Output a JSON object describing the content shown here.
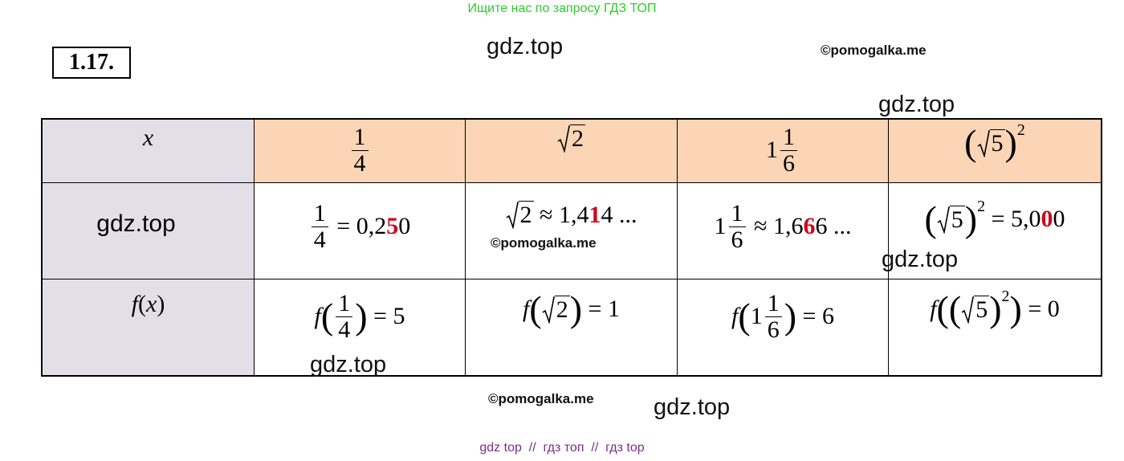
{
  "header": {
    "banner": "Ищите нас по запросу ГДЗ ТОП",
    "problem": "1.17."
  },
  "watermarks": [
    "gdz.top",
    "©pomogalka.me",
    "gdz.top",
    "©pomogalka.me",
    "gdz.top",
    "gdz.top",
    "©pomogalka.me",
    "gdz.top"
  ],
  "table": {
    "rows": [
      [
        [
          {
            "i": "x"
          }
        ],
        [
          {
            "frac": [
              "1",
              "4"
            ]
          }
        ],
        [
          {
            "sqrt": "2"
          }
        ],
        [
          "1",
          {
            "frac": [
              "1",
              "6"
            ]
          }
        ],
        [
          {
            "big": "("
          },
          {
            "sqrt": "5"
          },
          {
            "big": ")"
          },
          {
            "sup": "2"
          }
        ]
      ],
      [
        [
          "gdz.top"
        ],
        [
          {
            "frac": [
              "1",
              "4"
            ]
          },
          " = 0,2",
          {
            "red": "5"
          },
          "0"
        ],
        [
          {
            "sqrt": "2"
          },
          " ≈ 1,4",
          {
            "red": "1"
          },
          "4 ..."
        ],
        [
          "1",
          {
            "frac": [
              "1",
              "6"
            ]
          },
          " ≈ 1,6",
          {
            "red": "6"
          },
          "6 ..."
        ],
        [
          {
            "big": "("
          },
          {
            "sqrt": "5"
          },
          {
            "big": ")"
          },
          {
            "sup": "2"
          },
          " = 5,0",
          {
            "red": "0"
          },
          "0"
        ]
      ],
      [
        [
          {
            "i": "f"
          },
          "(",
          {
            "i": "x"
          },
          ")"
        ],
        [
          {
            "i": "f"
          },
          {
            "big": "("
          },
          {
            "frac": [
              "1",
              "4"
            ]
          },
          {
            "big": ")"
          },
          " = 5"
        ],
        [
          {
            "i": "f"
          },
          {
            "big": "("
          },
          {
            "sqrt": "2"
          },
          {
            "big": ")"
          },
          " = 1"
        ],
        [
          {
            "i": "f"
          },
          {
            "big": "("
          },
          "1",
          {
            "frac": [
              "1",
              "6"
            ]
          },
          {
            "big": ")"
          },
          " = 6"
        ],
        [
          {
            "i": "f"
          },
          {
            "big": "("
          },
          {
            "big": "("
          },
          {
            "sqrt": "5"
          },
          {
            "big": ")"
          },
          {
            "sup": "2"
          },
          {
            "big": ")"
          },
          " = 0"
        ]
      ]
    ]
  },
  "footer": "gdz top  //  гдз топ  //  гдз top"
}
